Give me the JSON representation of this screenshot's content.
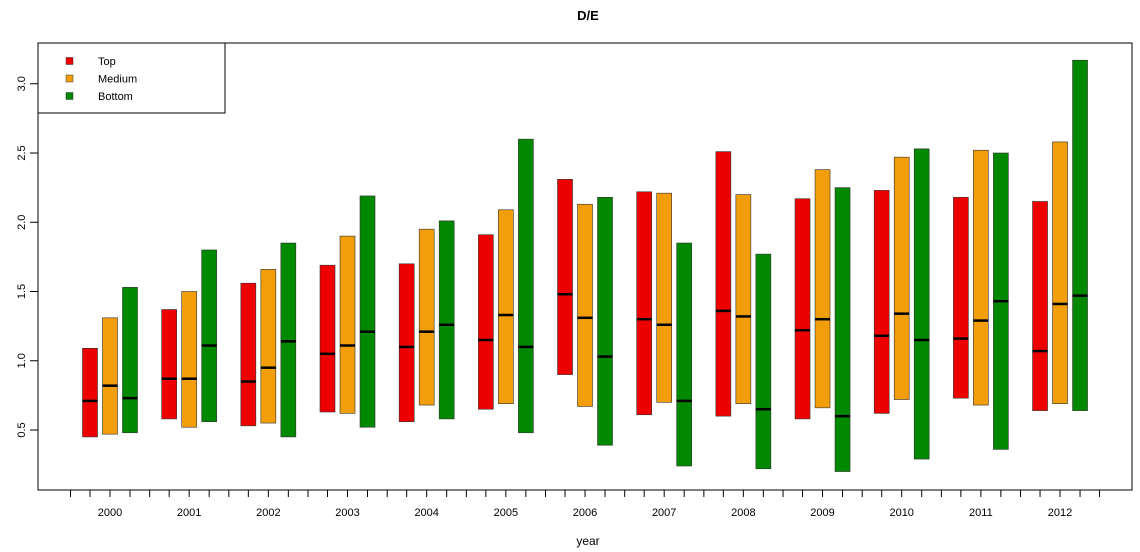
{
  "chart_data": {
    "type": "floating-bar",
    "title": "D/E",
    "xlabel": "year",
    "ylabel": "",
    "ylim": [
      0.12,
      3.3
    ],
    "yticks": [
      0.5,
      1.0,
      1.5,
      2.0,
      2.5,
      3.0
    ],
    "ytick_labels": [
      "0.5",
      "1.0",
      "1.5",
      "2.0",
      "2.5",
      "3.0"
    ],
    "categories": [
      "2000",
      "2001",
      "2002",
      "2003",
      "2004",
      "2005",
      "2006",
      "2007",
      "2008",
      "2009",
      "2010",
      "2011",
      "2012"
    ],
    "legend_position": "top-left",
    "series": [
      {
        "name": "Top",
        "color": "#ee0000",
        "low": [
          0.45,
          0.58,
          0.53,
          0.63,
          0.56,
          0.65,
          0.9,
          0.61,
          0.6,
          0.58,
          0.62,
          0.73,
          0.64
        ],
        "high": [
          1.09,
          1.37,
          1.56,
          1.69,
          1.7,
          1.91,
          2.31,
          2.22,
          2.51,
          2.17,
          2.23,
          2.18,
          2.15
        ],
        "median": [
          0.71,
          0.87,
          0.85,
          1.05,
          1.1,
          1.15,
          1.48,
          1.3,
          1.36,
          1.22,
          1.18,
          1.16,
          1.07
        ]
      },
      {
        "name": "Medium",
        "color": "#f19e0a",
        "low": [
          0.47,
          0.52,
          0.55,
          0.62,
          0.68,
          0.69,
          0.67,
          0.7,
          0.69,
          0.66,
          0.72,
          0.68,
          0.69
        ],
        "high": [
          1.31,
          1.5,
          1.66,
          1.9,
          1.95,
          2.09,
          2.13,
          2.21,
          2.2,
          2.38,
          2.47,
          2.52,
          2.58
        ],
        "median": [
          0.82,
          0.87,
          0.95,
          1.11,
          1.21,
          1.33,
          1.31,
          1.26,
          1.32,
          1.3,
          1.34,
          1.29,
          1.41
        ]
      },
      {
        "name": "Bottom",
        "color": "#008800",
        "low": [
          0.48,
          0.56,
          0.45,
          0.52,
          0.58,
          0.48,
          0.39,
          0.24,
          0.22,
          0.2,
          0.29,
          0.36,
          0.64
        ],
        "high": [
          1.53,
          1.8,
          1.85,
          2.19,
          2.01,
          2.6,
          2.18,
          1.85,
          1.77,
          2.25,
          2.53,
          2.5,
          3.17
        ],
        "median": [
          0.73,
          1.11,
          1.14,
          1.21,
          1.26,
          1.1,
          1.03,
          0.71,
          0.65,
          0.6,
          1.15,
          1.43,
          1.47
        ]
      }
    ]
  }
}
